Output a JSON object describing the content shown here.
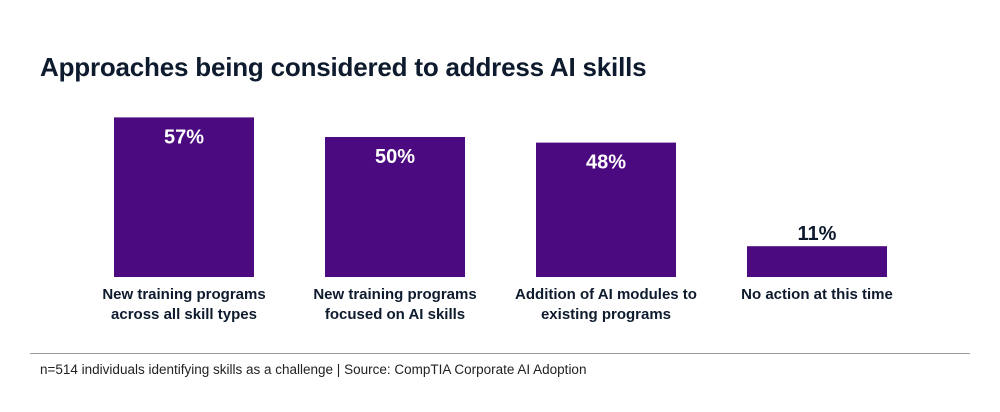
{
  "chart_data": {
    "type": "bar",
    "title": "Approaches being considered to address AI skills",
    "categories": [
      [
        "New training programs",
        "across all skill types"
      ],
      [
        "New training programs",
        "focused on AI skills"
      ],
      [
        "Addition of AI modules to",
        "existing programs"
      ],
      [
        "No action at this time"
      ]
    ],
    "values": [
      57,
      50,
      48,
      11
    ],
    "value_labels": [
      "57%",
      "50%",
      "48%",
      "11%"
    ],
    "xlabel": "",
    "ylabel": "",
    "ylim": [
      0,
      100
    ],
    "grid": false,
    "legend": "none",
    "bar_color": "#4b0a7f",
    "label_color_inside": "#ffffff",
    "label_color_outside": "#0e1b2e"
  },
  "footnote": "n=514 individuals identifying skills as a challenge | Source: CompTIA Corporate AI Adoption"
}
